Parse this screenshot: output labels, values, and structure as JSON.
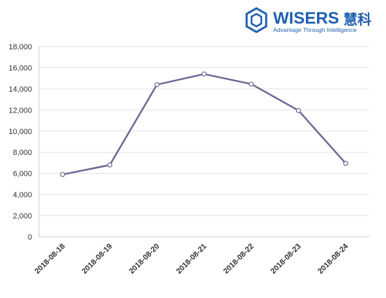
{
  "brand": {
    "name": "WISERS",
    "name_cn": "慧科",
    "tagline": "Advantage Through Intelligence",
    "color": "#1f5fb0",
    "icon": "hexagon-logo-icon"
  },
  "chart_data": {
    "type": "line",
    "categories": [
      "2018-08-18",
      "2018-08-19",
      "2018-08-20",
      "2018-08-21",
      "2018-08-22",
      "2018-08-23",
      "2018-08-24"
    ],
    "series": [
      {
        "values": [
          5900,
          6800,
          14400,
          15400,
          14450,
          11950,
          6950
        ],
        "color": "#6b6996"
      }
    ],
    "yticks": [
      "0",
      "2,000",
      "4,000",
      "6,000",
      "8,000",
      "10,000",
      "12,000",
      "14,000",
      "16,000",
      "18,000"
    ],
    "ylim": [
      0,
      18000
    ],
    "grid": true,
    "title": "",
    "xlabel": "",
    "ylabel": ""
  }
}
